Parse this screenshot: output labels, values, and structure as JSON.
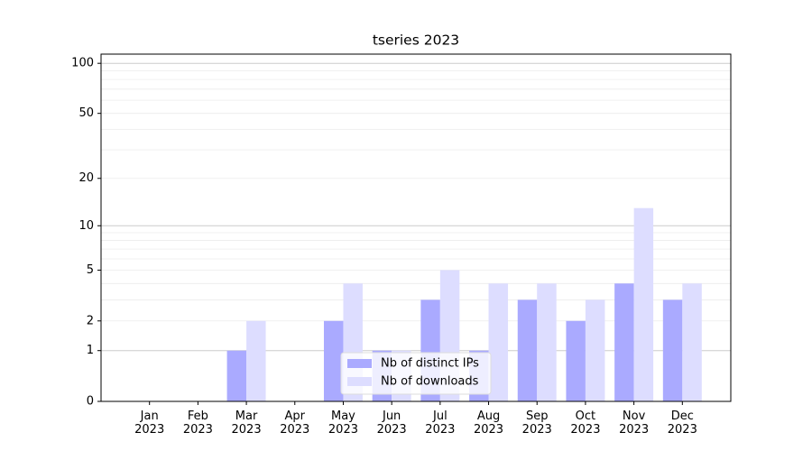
{
  "chart_data": {
    "type": "bar",
    "title": "tseries 2023",
    "categories": [
      "Jan\n2023",
      "Feb\n2023",
      "Mar\n2023",
      "Apr\n2023",
      "May\n2023",
      "Jun\n2023",
      "Jul\n2023",
      "Aug\n2023",
      "Sep\n2023",
      "Oct\n2023",
      "Nov\n2023",
      "Dec\n2023"
    ],
    "series": [
      {
        "name": "Nb of distinct IPs",
        "color": "#aaaaff",
        "values": [
          0,
          0,
          1,
          0,
          2,
          1,
          3,
          1,
          3,
          2,
          4,
          3
        ]
      },
      {
        "name": "Nb of downloads",
        "color": "#ddddff",
        "values": [
          0,
          0,
          2,
          0,
          4,
          1,
          5,
          4,
          4,
          3,
          13,
          4
        ]
      }
    ],
    "yscale": "log1p",
    "ylim": [
      0,
      113.5
    ],
    "yticks": [
      0,
      1,
      2,
      5,
      10,
      20,
      50,
      100
    ],
    "major_grid": [
      1,
      10,
      100
    ],
    "minor_grid": [
      2,
      3,
      4,
      5,
      6,
      7,
      8,
      9,
      20,
      30,
      40,
      50,
      60,
      70,
      80,
      90
    ],
    "legend": "lower center"
  }
}
